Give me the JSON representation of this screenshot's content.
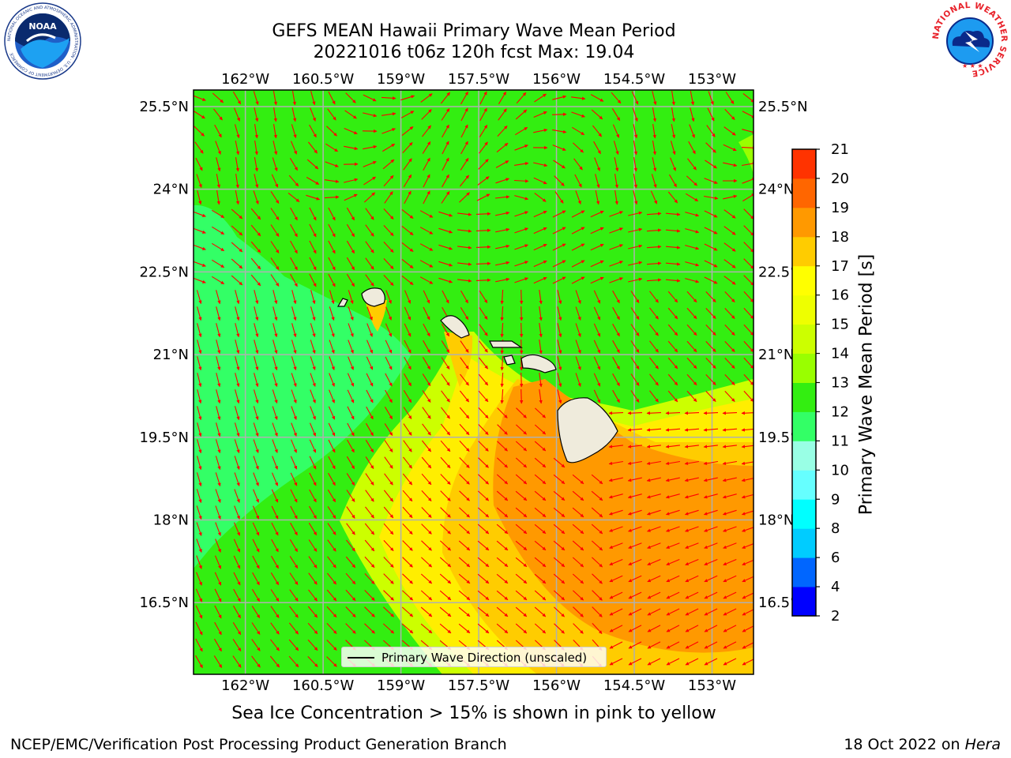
{
  "title": {
    "line1": "GEFS MEAN Hawaii Primary Wave Mean Period",
    "line2": "20221016 t06z 120h fcst   Max: 19.04"
  },
  "map": {
    "lon_range": [
      -163,
      -152.2
    ],
    "lat_range": [
      15.2,
      25.8
    ],
    "lon_ticks": [
      "162°W",
      "160.5°W",
      "159°W",
      "157.5°W",
      "156°W",
      "154.5°W",
      "153°W"
    ],
    "lon_tick_values": [
      -162,
      -160.5,
      -159,
      -157.5,
      -156,
      -154.5,
      -153
    ],
    "lat_ticks": [
      "25.5°N",
      "24°N",
      "22.5°N",
      "21°N",
      "19.5°N",
      "18°N",
      "16.5°N"
    ],
    "lat_tick_values": [
      25.5,
      24,
      22.5,
      21,
      19.5,
      18,
      16.5
    ],
    "grid": true,
    "arrow_color": "#ff0000",
    "land_color": "#efebdc"
  },
  "colorbar": {
    "title": "Primary Wave Mean Period [s]",
    "levels": [
      "2",
      "4",
      "6",
      "8",
      "9",
      "10",
      "11",
      "12",
      "13",
      "14",
      "15",
      "16",
      "17",
      "18",
      "19",
      "20",
      "21"
    ],
    "colors": [
      "#0000ff",
      "#0066ff",
      "#00ccff",
      "#00ffff",
      "#66ffff",
      "#99ffe5",
      "#33ff66",
      "#33ee11",
      "#99ff00",
      "#ccff00",
      "#eeff00",
      "#ffff00",
      "#ffcc00",
      "#ff9900",
      "#ff6600",
      "#ff3300",
      "#ff0000"
    ]
  },
  "legend": {
    "label": "Primary Wave Direction (unscaled)"
  },
  "subtitle": "Sea Ice Concentration > 15% is shown in pink to yellow",
  "footer": {
    "left": "NCEP/EMC/Verification Post Processing Product Generation Branch",
    "right_prefix": "18 Oct 2022 on ",
    "right_host": "Hera"
  },
  "logos": {
    "noaa_text": "NOAA",
    "noaa_ring": "NATIONAL OCEANIC AND ATMOSPHERIC ADMINISTRATION · U.S. DEPARTMENT OF COMMERCE",
    "nws_ring": "NATIONAL WEATHER SERVICE"
  }
}
